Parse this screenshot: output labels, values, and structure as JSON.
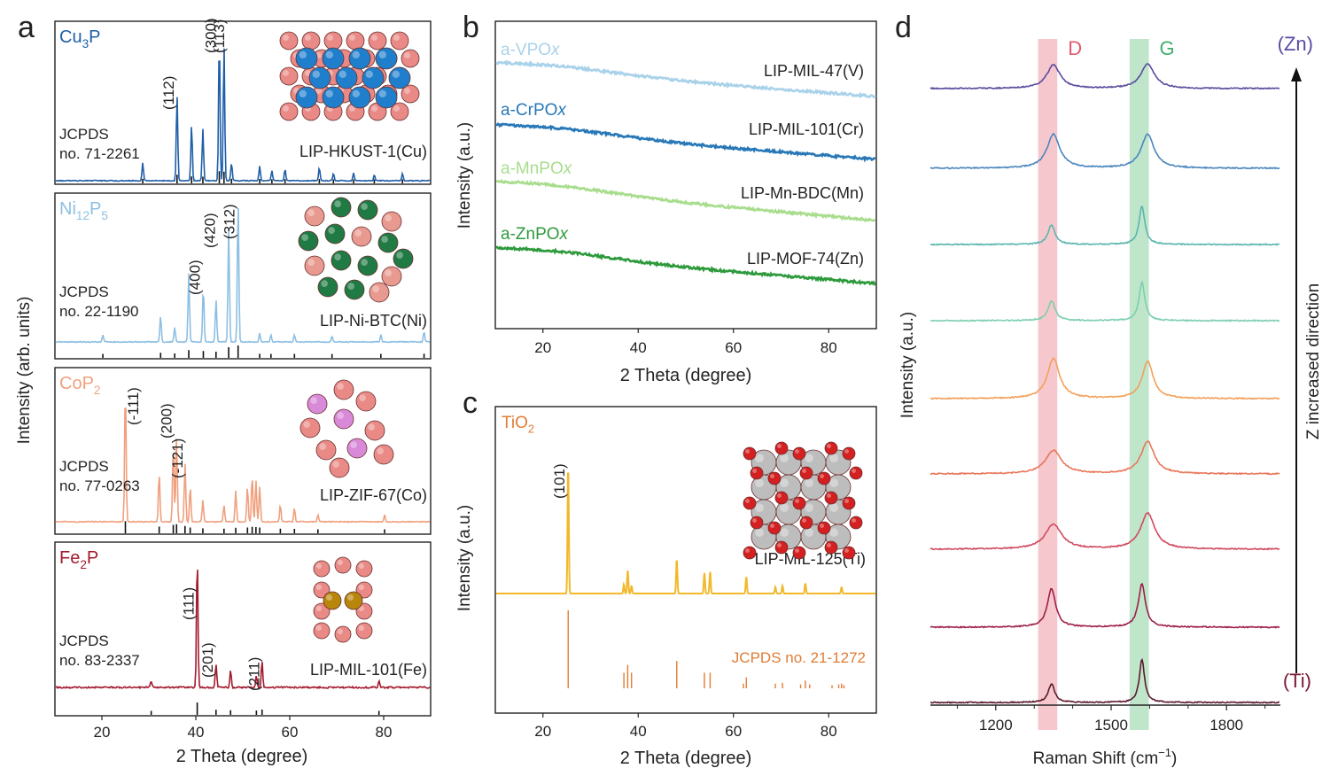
{
  "figure": {
    "panel_labels": {
      "a": "a",
      "b": "b",
      "c": "c",
      "d": "d"
    }
  },
  "colors": {
    "cu3p": "#1f5fa8",
    "ni12p5": "#8dbfe3",
    "cop2": "#f0a07e",
    "fe2p": "#a31a2e",
    "vpox": "#a9d2ea",
    "crpox": "#2878b8",
    "mnpox": "#a8dd8d",
    "znpox": "#2e9a3c",
    "tio2": "#f2b82a",
    "tio2_ref": "#e07c34",
    "d_band": "#f3b5bd",
    "g_band": "#a9deb9",
    "zn_label": "#5a4aa3",
    "ti_label": "#7a1733",
    "raman": [
      "#5b4b9e",
      "#4a86bd",
      "#5bb5ad",
      "#7ccfae",
      "#f3a05b",
      "#e8765a",
      "#d04a5f",
      "#9e1e47",
      "#5b1a2e"
    ]
  },
  "chart_data": [
    {
      "id": "a",
      "type": "line",
      "title": "",
      "xlabel": "2 Theta (degree)",
      "ylabel": "Intensity (arb. units)",
      "xlim": [
        10,
        90
      ],
      "xticks": [
        20,
        40,
        60,
        80
      ],
      "subplots": [
        {
          "phase": "Cu",
          "phase_sub": "3",
          "phase_end": "P",
          "jcpds": [
            "JCPDS",
            "no. 71-2261"
          ],
          "sample": "LIP-HKUST-1(Cu)",
          "peaks": [
            [
              28.7,
              0.12
            ],
            [
              36.0,
              0.58
            ],
            [
              39.1,
              0.38
            ],
            [
              41.5,
              0.35
            ],
            [
              45.0,
              0.97
            ],
            [
              46.0,
              0.92
            ],
            [
              47.6,
              0.12
            ],
            [
              53.6,
              0.1
            ],
            [
              56.2,
              0.07
            ],
            [
              59.0,
              0.08
            ],
            [
              66.3,
              0.09
            ],
            [
              69.3,
              0.05
            ],
            [
              73.6,
              0.05
            ],
            [
              78.0,
              0.04
            ],
            [
              84.0,
              0.05
            ]
          ],
          "hkl": [
            {
              "label": "(112)",
              "x": 36.0
            },
            {
              "label": "(300)",
              "x": 45.0
            },
            {
              "label": "(113)",
              "x": 46.8
            }
          ]
        },
        {
          "phase": "Ni",
          "phase_sub": "12",
          "phase_end": "P",
          "phase_sub2": "5",
          "jcpds": [
            "JCPDS",
            "no. 22-1190"
          ],
          "sample": "LIP-Ni-BTC(Ni)",
          "peaks": [
            [
              20.2,
              0.05
            ],
            [
              32.5,
              0.18
            ],
            [
              35.5,
              0.1
            ],
            [
              38.5,
              0.48
            ],
            [
              41.6,
              0.38
            ],
            [
              44.3,
              0.3
            ],
            [
              47.0,
              0.8
            ],
            [
              49.0,
              1.0
            ],
            [
              53.6,
              0.06
            ],
            [
              56.0,
              0.05
            ],
            [
              61.0,
              0.05
            ],
            [
              69.0,
              0.04
            ],
            [
              79.4,
              0.05
            ],
            [
              88.6,
              0.07
            ]
          ],
          "hkl": [
            {
              "label": "(400)",
              "x": 41.6
            },
            {
              "label": "(420)",
              "x": 44.8
            },
            {
              "label": "(312)",
              "x": 49.0
            }
          ]
        },
        {
          "phase": "CoP",
          "phase_sub": "2",
          "phase_end": "",
          "jcpds": [
            "JCPDS",
            "no. 77-0263"
          ],
          "sample": "LIP-ZIF-67(Co)",
          "peaks": [
            [
              25.0,
              0.97
            ],
            [
              32.2,
              0.35
            ],
            [
              35.2,
              0.55
            ],
            [
              35.9,
              0.62
            ],
            [
              37.7,
              0.42
            ],
            [
              38.8,
              0.25
            ],
            [
              41.5,
              0.15
            ],
            [
              46.0,
              0.12
            ],
            [
              48.5,
              0.22
            ],
            [
              51.0,
              0.25
            ],
            [
              52.0,
              0.33
            ],
            [
              52.8,
              0.3
            ],
            [
              53.6,
              0.25
            ],
            [
              58.0,
              0.12
            ],
            [
              61.0,
              0.1
            ],
            [
              66.0,
              0.05
            ],
            [
              80.2,
              0.05
            ]
          ],
          "hkl": [
            {
              "label": "(-111)",
              "x": 28.5
            },
            {
              "label": "(200)",
              "x": 35.6
            },
            {
              "label": "(-121)",
              "x": 37.9
            }
          ]
        },
        {
          "phase": "Fe",
          "phase_sub": "2",
          "phase_end": "P",
          "jcpds": [
            "JCPDS",
            "no. 83-2337"
          ],
          "sample": "LIP-MIL-101(Fe)",
          "peaks": [
            [
              30.5,
              0.05
            ],
            [
              40.3,
              1.0
            ],
            [
              44.3,
              0.18
            ],
            [
              47.4,
              0.13
            ],
            [
              52.9,
              0.09
            ],
            [
              54.1,
              0.2
            ],
            [
              79.0,
              0.05
            ]
          ],
          "hkl": [
            {
              "label": "(111)",
              "x": 40.3
            },
            {
              "label": "(201)",
              "x": 44.3
            },
            {
              "label": "(211)",
              "x": 54.2
            }
          ]
        }
      ]
    },
    {
      "id": "b",
      "type": "line",
      "xlabel": "2 Theta (degree)",
      "ylabel": "Intensity (a.u.)",
      "xlim": [
        10,
        90
      ],
      "xticks": [
        20,
        40,
        60,
        80
      ],
      "series": [
        {
          "name": "a-VPO",
          "name_italic": "x",
          "sample": "LIP-MIL-47(V)"
        },
        {
          "name": "a-CrPO",
          "name_italic": "x",
          "sample": "LIP-MIL-101(Cr)"
        },
        {
          "name": "a-MnPO",
          "name_italic": "x",
          "sample": "LIP-Mn-BDC(Mn)"
        },
        {
          "name": "a-ZnPO",
          "name_italic": "x",
          "sample": "LIP-MOF-74(Zn)"
        }
      ]
    },
    {
      "id": "c",
      "type": "line",
      "xlabel": "2 Theta (degree)",
      "ylabel": "Intensity (a.u.)",
      "xlim": [
        10,
        90
      ],
      "xticks": [
        20,
        40,
        60,
        80
      ],
      "phase": "TiO",
      "phase_sub": "2",
      "sample": "LIP-MIL-125(Ti)",
      "reference": "JCPDS no. 21-1272",
      "hkl": [
        {
          "label": "(101)",
          "x": 25.3
        }
      ],
      "peaks": [
        [
          25.3,
          1.0
        ],
        [
          37.0,
          0.07
        ],
        [
          37.8,
          0.18
        ],
        [
          38.6,
          0.06
        ],
        [
          48.1,
          0.27
        ],
        [
          53.9,
          0.16
        ],
        [
          55.1,
          0.17
        ],
        [
          62.7,
          0.13
        ],
        [
          68.8,
          0.05
        ],
        [
          70.3,
          0.06
        ],
        [
          75.1,
          0.08
        ],
        [
          82.7,
          0.05
        ]
      ],
      "ref_lines": [
        [
          25.3,
          1.0
        ],
        [
          37.0,
          0.2
        ],
        [
          37.8,
          0.3
        ],
        [
          38.6,
          0.2
        ],
        [
          48.1,
          0.35
        ],
        [
          53.9,
          0.2
        ],
        [
          55.1,
          0.2
        ],
        [
          62.1,
          0.06
        ],
        [
          62.7,
          0.14
        ],
        [
          68.8,
          0.06
        ],
        [
          70.3,
          0.07
        ],
        [
          74.1,
          0.05
        ],
        [
          75.1,
          0.1
        ],
        [
          76.0,
          0.05
        ],
        [
          80.7,
          0.04
        ],
        [
          82.1,
          0.05
        ],
        [
          82.7,
          0.06
        ],
        [
          83.2,
          0.04
        ]
      ]
    },
    {
      "id": "d",
      "type": "line",
      "xlabel": "Raman Shift (cm",
      "xlabel_sup": "−1",
      "xlabel_end": ")",
      "ylabel": "Intensity (a.u.)",
      "xlim": [
        1030,
        1940
      ],
      "xticks": [
        1200,
        1500,
        1800
      ],
      "bands": [
        {
          "label": "D",
          "from": 1310,
          "to": 1360
        },
        {
          "label": "G",
          "from": 1548,
          "to": 1598
        }
      ],
      "arrow_label": "Z increased direction",
      "top_label": "(Zn)",
      "bottom_label": "(Ti)",
      "series": [
        {
          "name": "s1",
          "d_pos": 1350,
          "d_h": 0.38,
          "d_w": 42,
          "g_pos": 1595,
          "g_h": 0.4,
          "g_w": 42
        },
        {
          "name": "s2",
          "d_pos": 1350,
          "d_h": 0.55,
          "d_w": 40,
          "g_pos": 1595,
          "g_h": 0.55,
          "g_w": 40
        },
        {
          "name": "s3",
          "d_pos": 1345,
          "d_h": 0.32,
          "d_w": 22,
          "g_pos": 1580,
          "g_h": 0.62,
          "g_w": 18
        },
        {
          "name": "s4",
          "d_pos": 1345,
          "d_h": 0.32,
          "d_w": 22,
          "g_pos": 1580,
          "g_h": 0.62,
          "g_w": 18
        },
        {
          "name": "s5",
          "d_pos": 1350,
          "d_h": 0.65,
          "d_w": 38,
          "g_pos": 1595,
          "g_h": 0.6,
          "g_w": 34
        },
        {
          "name": "s6",
          "d_pos": 1350,
          "d_h": 0.38,
          "d_w": 50,
          "g_pos": 1595,
          "g_h": 0.52,
          "g_w": 42
        },
        {
          "name": "s7",
          "d_pos": 1350,
          "d_h": 0.4,
          "d_w": 52,
          "g_pos": 1595,
          "g_h": 0.58,
          "g_w": 44
        },
        {
          "name": "s8",
          "d_pos": 1345,
          "d_h": 0.62,
          "d_w": 26,
          "g_pos": 1580,
          "g_h": 0.7,
          "g_w": 22
        },
        {
          "name": "s9",
          "d_pos": 1345,
          "d_h": 0.3,
          "d_w": 20,
          "g_pos": 1580,
          "g_h": 0.7,
          "g_w": 16
        }
      ]
    }
  ]
}
